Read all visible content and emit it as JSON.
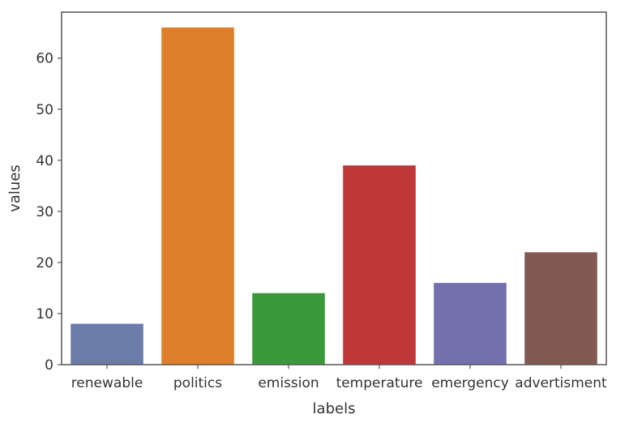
{
  "chart_data": {
    "type": "bar",
    "categories": [
      "renewable",
      "politics",
      "emission",
      "temperature",
      "emergency",
      "advertisment"
    ],
    "values": [
      8,
      66,
      14,
      39,
      16,
      22
    ],
    "colors": [
      "#6c7ca8",
      "#e07f2b",
      "#3a9a3a",
      "#c0373a",
      "#7470ad",
      "#825a53"
    ],
    "title": "",
    "xlabel": "labels",
    "ylabel": "values",
    "ylim": [
      0,
      69
    ],
    "yticks": [
      0,
      10,
      20,
      30,
      40,
      50,
      60
    ],
    "grid": false,
    "legend": "none"
  }
}
